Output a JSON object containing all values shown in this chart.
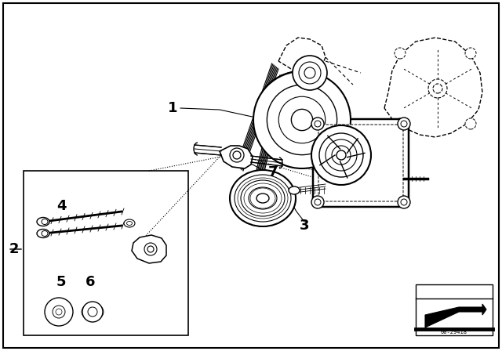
{
  "bg_color": "#ffffff",
  "border_color": "#000000",
  "diagram_id": "00-29418",
  "lw_main": 1.2,
  "lw_thin": 0.7,
  "lw_thick": 1.8
}
